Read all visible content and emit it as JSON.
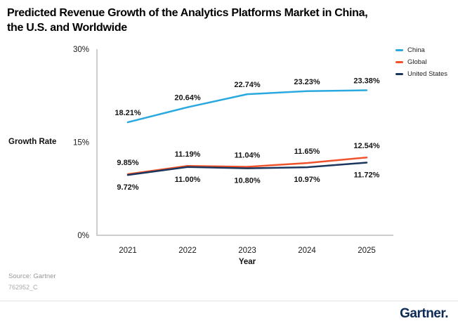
{
  "title": {
    "line1": "Predicted Revenue Growth of the Analytics Platforms Market in China,",
    "line2": "the U.S. and Worldwide"
  },
  "chart_data": {
    "type": "line",
    "title": "Predicted Revenue Growth of the Analytics Platforms Market in China, the U.S. and Worldwide",
    "xlabel": "Year",
    "ylabel": "Growth Rate",
    "categories": [
      "2021",
      "2022",
      "2023",
      "2024",
      "2025"
    ],
    "ylim": [
      0,
      30
    ],
    "y_ticks": [
      {
        "label": "30%",
        "value": 30
      },
      {
        "label": "15%",
        "value": 15
      },
      {
        "label": "0%",
        "value": 0
      }
    ],
    "grid": false,
    "legend_position": "top-right",
    "series": [
      {
        "name": "China",
        "color": "#2aa8e0",
        "values": [
          18.21,
          20.64,
          22.74,
          23.23,
          23.38
        ],
        "labels": [
          "18.21%",
          "20.64%",
          "22.74%",
          "23.23%",
          "23.38%"
        ],
        "label_side": "above"
      },
      {
        "name": "Global",
        "color": "#f0532b",
        "values": [
          9.85,
          11.19,
          11.04,
          11.65,
          12.54
        ],
        "labels": [
          "9.85%",
          "11.19%",
          "11.04%",
          "11.65%",
          "12.54%"
        ],
        "label_side": "above"
      },
      {
        "name": "United States",
        "color": "#1b365d",
        "values": [
          9.72,
          11.0,
          10.8,
          10.97,
          11.72
        ],
        "labels": [
          "9.72%",
          "11.00%",
          "10.80%",
          "10.97%",
          "11.72%"
        ],
        "label_side": "below"
      }
    ],
    "colors": {
      "axis": "#bdbdbd",
      "tick_text": "#1a1a1a",
      "data_label": "#141414"
    }
  },
  "footer": {
    "source": "Source: Gartner",
    "doc_id": "762952_C",
    "logo": "Gartner."
  }
}
